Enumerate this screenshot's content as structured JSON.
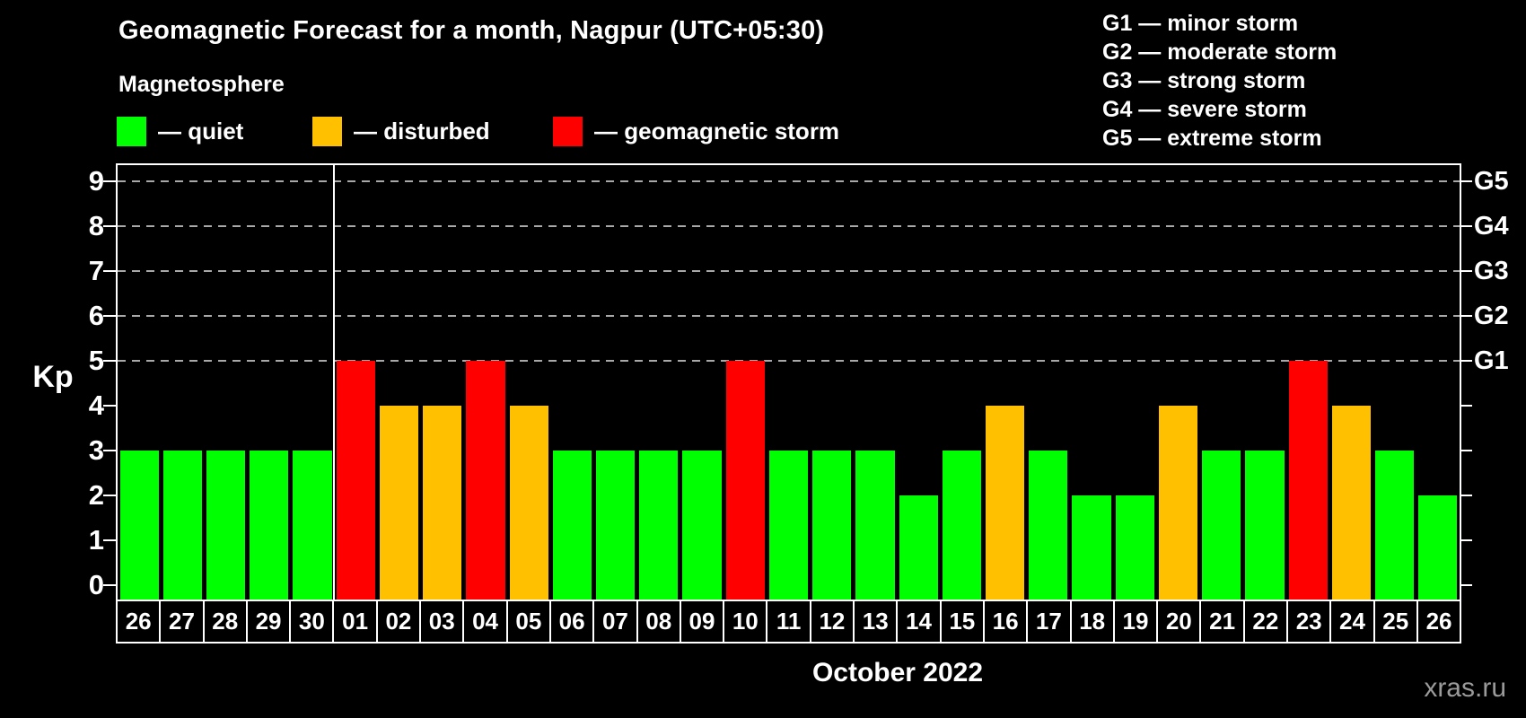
{
  "title": "Geomagnetic Forecast for a month, Nagpur (UTC+05:30)",
  "subtitle": "Magnetosphere",
  "legend": [
    {
      "label": "— quiet",
      "status": "quiet"
    },
    {
      "label": "— disturbed",
      "status": "disturbed"
    },
    {
      "label": "— geomagnetic storm",
      "status": "storm"
    }
  ],
  "g_scale_legend": [
    "G1 — minor storm",
    "G2 — moderate storm",
    "G3 — strong storm",
    "G4 — severe storm",
    "G5 — extreme storm"
  ],
  "status_colors": {
    "quiet": "#00ff00",
    "disturbed": "#ffc000",
    "storm": "#ff0000"
  },
  "watermark": "xras.ru",
  "chart_data": {
    "type": "bar",
    "title": "Geomagnetic Forecast for a month, Nagpur (UTC+05:30)",
    "subtitle": "Magnetosphere",
    "xlabel": "October 2022",
    "ylabel": "Kp",
    "ylim": [
      -0.32,
      9.36
    ],
    "y_ticks": [
      0,
      1,
      2,
      3,
      4,
      5,
      6,
      7,
      8,
      9
    ],
    "grid": "dashed horizontal gridlines at Kp 5-9 only",
    "grid_levels": [
      5,
      6,
      7,
      8,
      9
    ],
    "legend_position": "top-left",
    "right_axis": [
      {
        "label": "G1",
        "kp": 5
      },
      {
        "label": "G2",
        "kp": 6
      },
      {
        "label": "G3",
        "kp": 7
      },
      {
        "label": "G4",
        "kp": 8
      },
      {
        "label": "G5",
        "kp": 9
      }
    ],
    "categories": [
      "26",
      "27",
      "28",
      "29",
      "30",
      "01",
      "02",
      "03",
      "04",
      "05",
      "06",
      "07",
      "08",
      "09",
      "10",
      "11",
      "12",
      "13",
      "14",
      "15",
      "16",
      "17",
      "18",
      "19",
      "20",
      "21",
      "22",
      "23",
      "24",
      "25",
      "26"
    ],
    "values": [
      3,
      3,
      3,
      3,
      3,
      5,
      4,
      4,
      5,
      4,
      3,
      3,
      3,
      3,
      5,
      3,
      3,
      3,
      2,
      3,
      4,
      3,
      2,
      2,
      4,
      3,
      3,
      5,
      4,
      3,
      2
    ],
    "statuses": [
      "quiet",
      "quiet",
      "quiet",
      "quiet",
      "quiet",
      "storm",
      "disturbed",
      "disturbed",
      "storm",
      "disturbed",
      "quiet",
      "quiet",
      "quiet",
      "quiet",
      "storm",
      "quiet",
      "quiet",
      "quiet",
      "quiet",
      "quiet",
      "disturbed",
      "quiet",
      "quiet",
      "quiet",
      "disturbed",
      "quiet",
      "quiet",
      "storm",
      "disturbed",
      "quiet",
      "quiet"
    ],
    "month_separator_after_index": 4
  }
}
